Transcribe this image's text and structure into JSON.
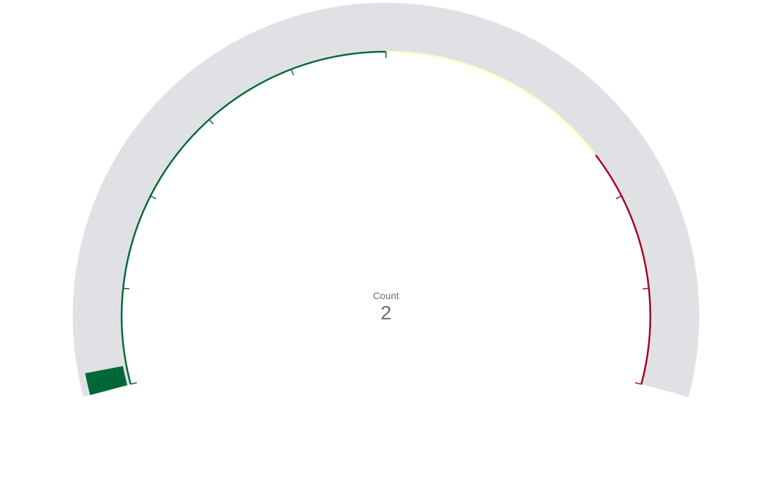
{
  "chart_data": {
    "type": "gauge",
    "label": "Count",
    "value": 2,
    "min": 0,
    "max": 100,
    "bands": [
      {
        "from": 0,
        "to": 50,
        "color": "#006837"
      },
      {
        "from": 50,
        "to": 75,
        "color": "#ffffbf"
      },
      {
        "from": 75,
        "to": 100,
        "color": "#a50026"
      }
    ],
    "track_color": "#e0e1e5",
    "label_color": "#6b6f7b",
    "major_ticks": [
      0,
      10,
      20,
      30,
      40,
      50,
      60,
      70,
      80,
      90,
      100
    ]
  }
}
